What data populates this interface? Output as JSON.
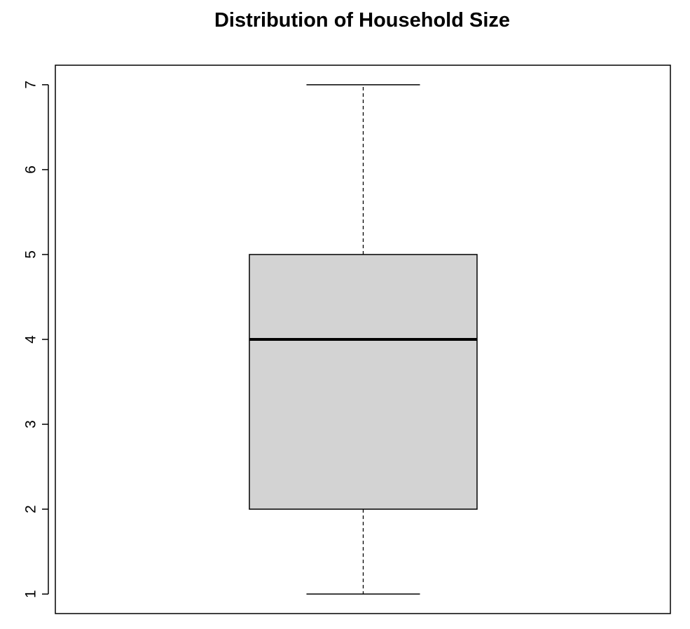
{
  "chart_data": {
    "type": "boxplot",
    "title": "Distribution of Household Size",
    "xlabel": "",
    "ylabel": "",
    "ylim": [
      0.77,
      7.23
    ],
    "yticks": [
      1,
      2,
      3,
      4,
      5,
      6,
      7
    ],
    "box": {
      "min": 1,
      "q1": 2,
      "median": 4,
      "q3": 5,
      "max": 7
    },
    "box_fill": "#d3d3d3",
    "line_color": "#000000",
    "grid": false,
    "legend": "none"
  }
}
